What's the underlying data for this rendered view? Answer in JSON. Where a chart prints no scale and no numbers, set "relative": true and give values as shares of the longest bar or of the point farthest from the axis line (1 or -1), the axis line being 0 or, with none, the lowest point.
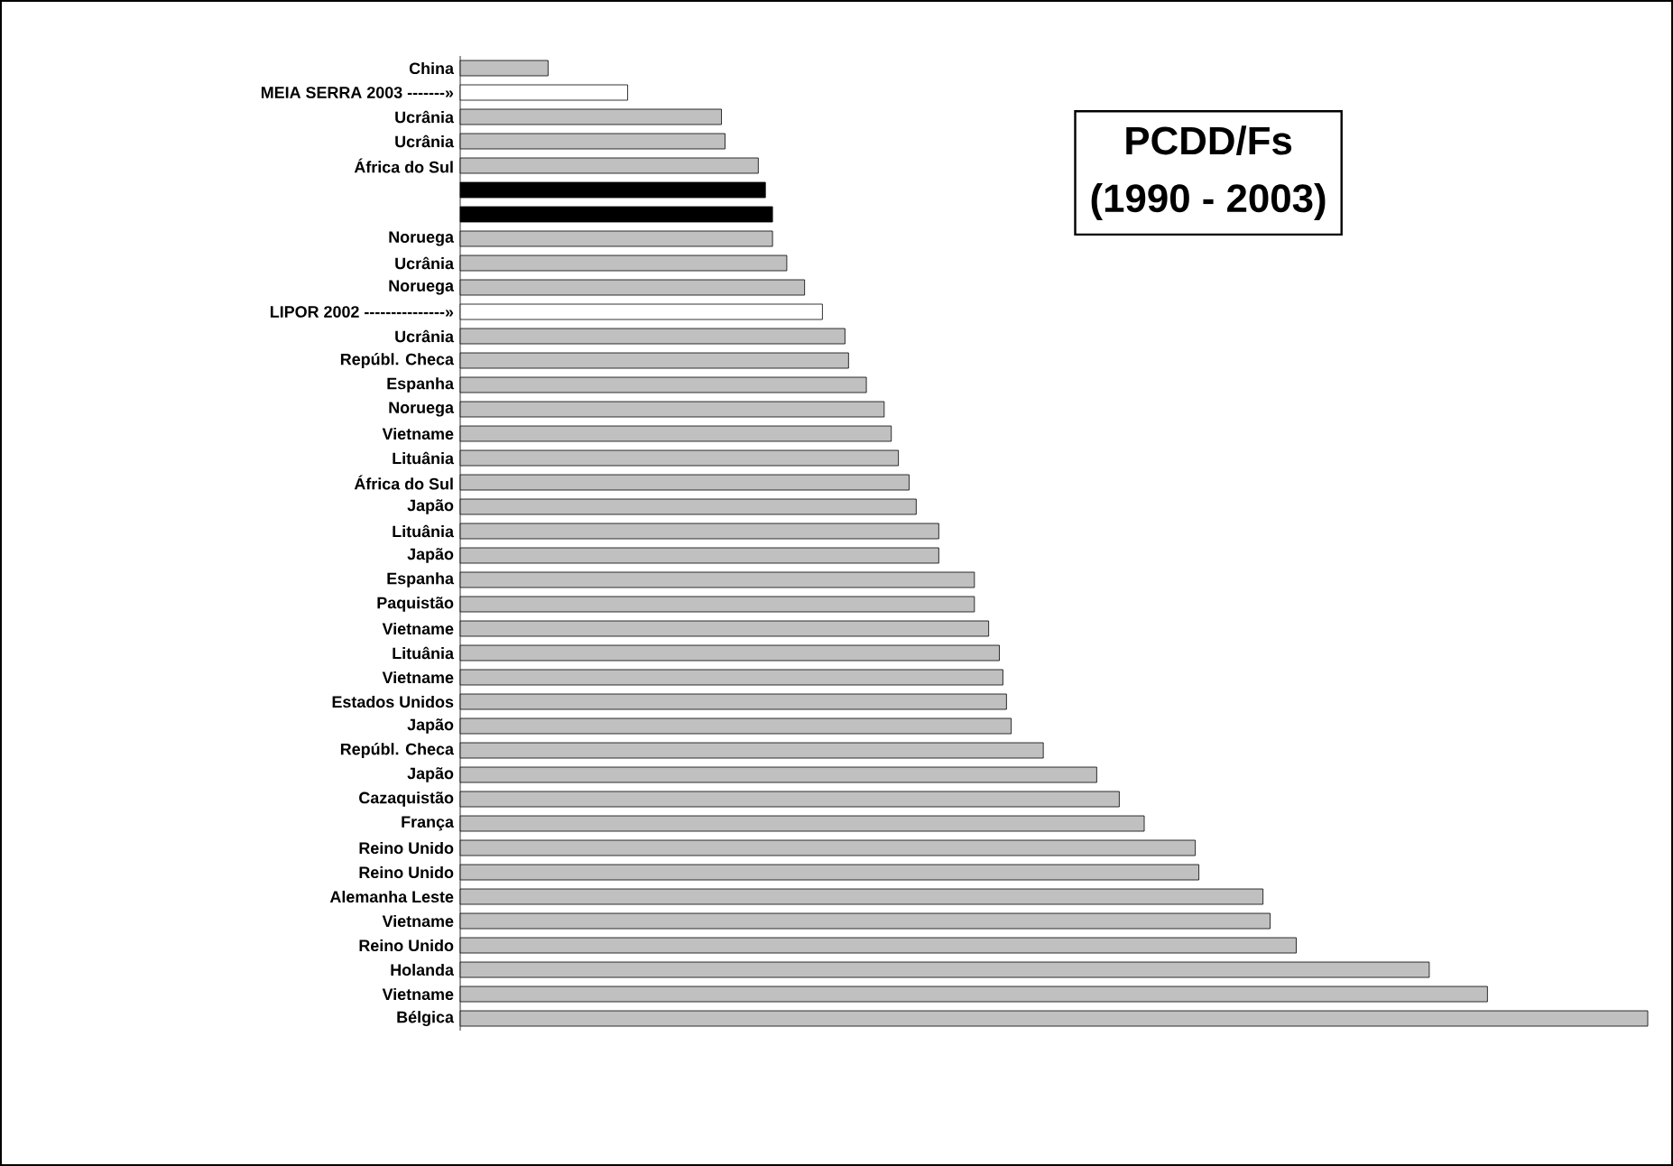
{
  "chart_data": {
    "type": "bar",
    "orientation": "horizontal",
    "relative": true,
    "title": "PCDD/Fs",
    "subtitle": "(1990 - 2003)",
    "categories": [
      "China",
      "MEIA SERRA 2003 -------»",
      "Ucrânia",
      "Ucrânia",
      "África do Sul",
      null,
      null,
      "Noruega",
      "Ucrânia",
      "Noruega",
      "LIPOR 2002 ---------------»",
      "Ucrânia",
      "Repúbl. Checa",
      "Espanha",
      "Noruega",
      "Vietname",
      "Lituânia",
      "África do Sul",
      "Japão",
      "Lituânia",
      "Japão",
      "Espanha",
      "Paquistão",
      "Vietname",
      "Lituânia",
      "Vietname",
      "Estados Unidos",
      "Japão",
      "Repúbl. Checa",
      "Japão",
      "Cazaquistão",
      "França",
      "Reino Unido",
      "Reino Unido",
      "Alemanha Leste",
      "Vietname",
      "Reino Unido",
      "Holanda",
      "Vietname",
      "Bélgica"
    ],
    "values": [
      0.074,
      0.141,
      0.22,
      0.223,
      0.251,
      0.257,
      0.263,
      0.263,
      0.275,
      0.29,
      0.305,
      0.324,
      0.327,
      0.342,
      0.357,
      0.363,
      0.369,
      0.378,
      0.384,
      0.403,
      0.403,
      0.433,
      0.433,
      0.445,
      0.454,
      0.457,
      0.46,
      0.464,
      0.491,
      0.536,
      0.555,
      0.576,
      0.619,
      0.622,
      0.676,
      0.682,
      0.704,
      0.816,
      0.865,
      1
    ],
    "colors": [
      "#c0c0c0",
      "#ffffff",
      "#c0c0c0",
      "#c0c0c0",
      "#c0c0c0",
      "#000000",
      "#000000",
      "#c0c0c0",
      "#c0c0c0",
      "#c0c0c0",
      "#ffffff",
      "#c0c0c0",
      "#c0c0c0",
      "#c0c0c0",
      "#c0c0c0",
      "#c0c0c0",
      "#c0c0c0",
      "#c0c0c0",
      "#c0c0c0",
      "#c0c0c0",
      "#c0c0c0",
      "#c0c0c0",
      "#c0c0c0",
      "#c0c0c0",
      "#c0c0c0",
      "#c0c0c0",
      "#c0c0c0",
      "#c0c0c0",
      "#c0c0c0",
      "#c0c0c0",
      "#c0c0c0",
      "#c0c0c0",
      "#c0c0c0",
      "#c0c0c0",
      "#c0c0c0",
      "#c0c0c0",
      "#c0c0c0",
      "#c0c0c0",
      "#c0c0c0",
      "#c0c0c0"
    ]
  }
}
